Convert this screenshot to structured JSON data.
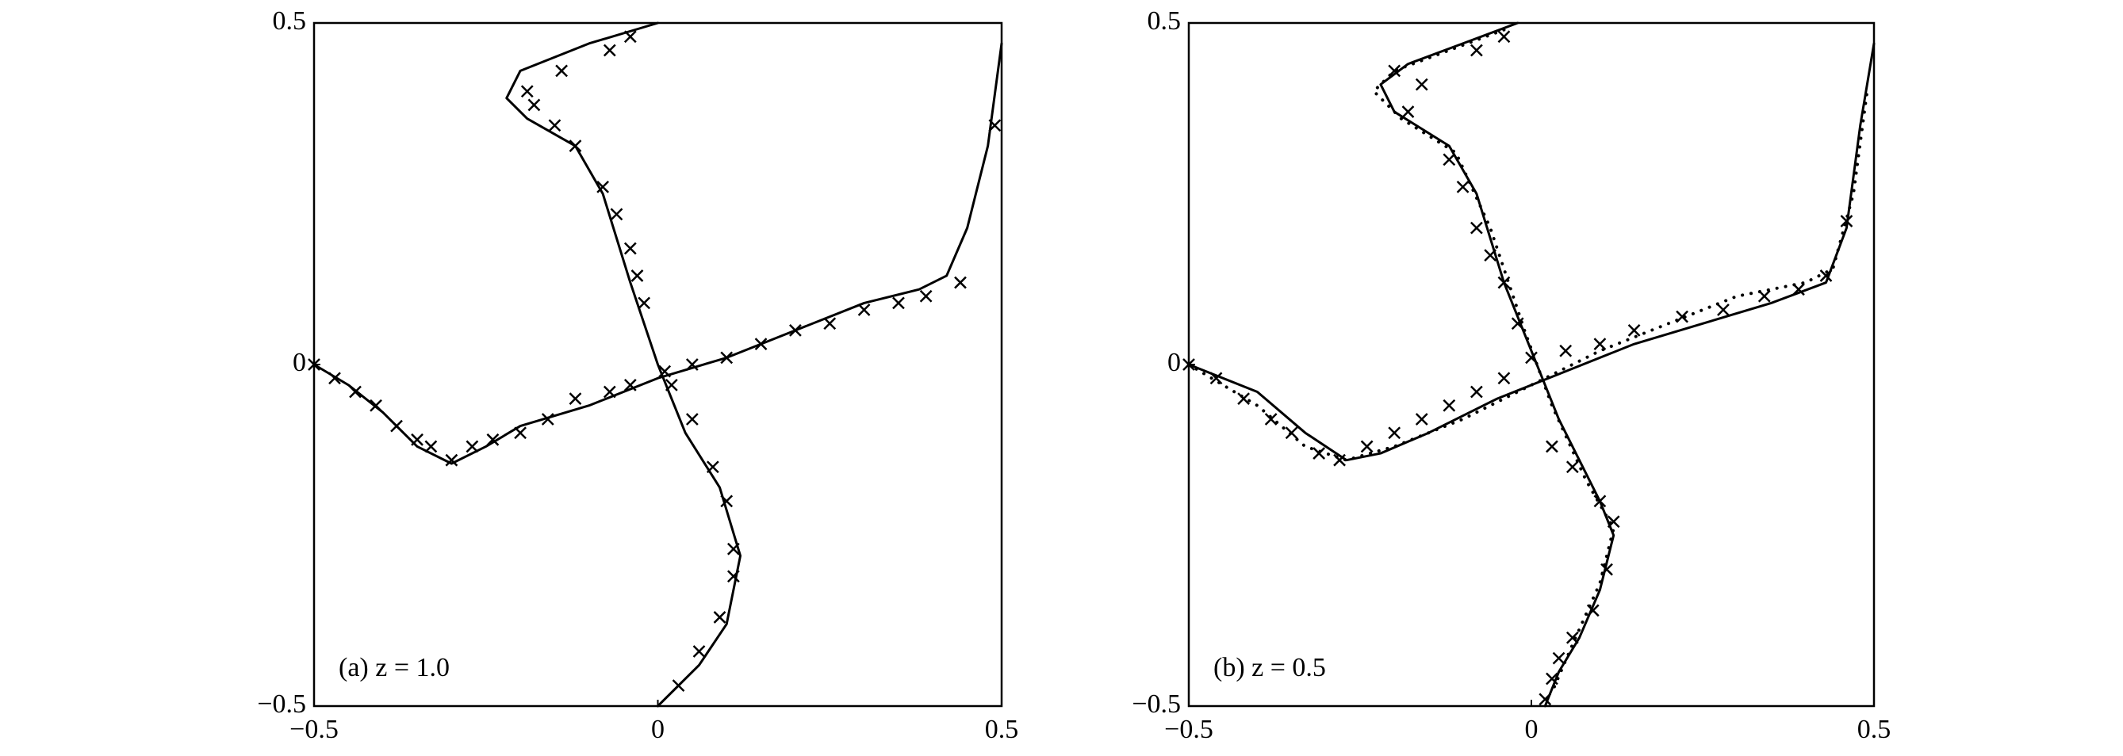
{
  "chart_data": [
    {
      "type": "line",
      "annotation": "(a) z = 1.0",
      "xlim": [
        -0.5,
        0.5
      ],
      "ylim": [
        -0.5,
        0.5
      ],
      "xticks": [
        {
          "value": -0.5,
          "label": "−0.5"
        },
        0,
        0.5
      ],
      "yticks": [
        {
          "value": -0.5,
          "label": "−0.5"
        },
        0,
        0.5
      ],
      "series": [
        {
          "color": "#000000",
          "linestyle": "solid",
          "x": [
            -0.5,
            -0.45,
            -0.4,
            -0.35,
            -0.3,
            -0.25,
            -0.2,
            -0.1,
            0,
            0.1,
            0.2,
            0.3,
            0.38,
            0.42,
            0.45,
            0.48,
            0.5
          ],
          "values": [
            0,
            -0.03,
            -0.07,
            -0.12,
            -0.145,
            -0.12,
            -0.09,
            -0.06,
            -0.02,
            0.01,
            0.05,
            0.09,
            0.11,
            0.13,
            0.2,
            0.32,
            0.47
          ]
        },
        {
          "color": "#000000",
          "linestyle": "solid",
          "x": [
            0,
            -0.1,
            -0.2,
            -0.22,
            -0.19,
            -0.12,
            -0.08,
            -0.04,
            0,
            0.04,
            0.09,
            0.12,
            0.1,
            0.06,
            0
          ],
          "values": [
            0.5,
            0.47,
            0.43,
            0.39,
            0.36,
            0.32,
            0.25,
            0.12,
            0,
            -0.1,
            -0.18,
            -0.28,
            -0.38,
            -0.44,
            -0.5
          ]
        },
        {
          "color": "#000000",
          "marker": "x",
          "x": [
            -0.5,
            -0.47,
            -0.44,
            -0.41,
            -0.38,
            -0.35,
            -0.33,
            -0.3,
            -0.27,
            -0.24,
            -0.2,
            -0.16,
            -0.12,
            -0.07,
            -0.04,
            0.01,
            0.05,
            0.1,
            0.15,
            0.2,
            0.25,
            0.3,
            0.35,
            0.39,
            0.44,
            0.49,
            -0.04,
            -0.07,
            -0.14,
            -0.19,
            -0.18,
            -0.15,
            -0.12,
            -0.08,
            -0.06,
            -0.04,
            -0.03,
            -0.02,
            0.02,
            0.05,
            0.08,
            0.1,
            0.11,
            0.11,
            0.09,
            0.06,
            0.03
          ],
          "values": [
            0,
            -0.02,
            -0.04,
            -0.06,
            -0.09,
            -0.11,
            -0.12,
            -0.14,
            -0.12,
            -0.11,
            -0.1,
            -0.08,
            -0.05,
            -0.04,
            -0.03,
            -0.01,
            0,
            0.01,
            0.03,
            0.05,
            0.06,
            0.08,
            0.09,
            0.1,
            0.12,
            0.35,
            0.48,
            0.46,
            0.43,
            0.4,
            0.38,
            0.35,
            0.32,
            0.26,
            0.22,
            0.17,
            0.13,
            0.09,
            -0.03,
            -0.08,
            -0.15,
            -0.2,
            -0.27,
            -0.31,
            -0.37,
            -0.42,
            -0.47
          ]
        }
      ]
    },
    {
      "type": "line",
      "annotation": "(b) z = 0.5",
      "xlim": [
        -0.5,
        0.5
      ],
      "ylim": [
        -0.5,
        0.5
      ],
      "xticks": [
        {
          "value": -0.5,
          "label": "−0.5"
        },
        0,
        0.5
      ],
      "yticks": [
        {
          "value": -0.5,
          "label": "−0.5"
        },
        0,
        0.5
      ],
      "series": [
        {
          "color": "#000000",
          "linestyle": "solid",
          "x": [
            -0.5,
            -0.4,
            -0.33,
            -0.27,
            -0.22,
            -0.15,
            -0.05,
            0.05,
            0.15,
            0.25,
            0.35,
            0.43,
            0.46,
            0.48,
            0.5
          ],
          "values": [
            0,
            -0.04,
            -0.1,
            -0.14,
            -0.13,
            -0.1,
            -0.05,
            -0.01,
            0.03,
            0.06,
            0.09,
            0.12,
            0.2,
            0.35,
            0.47
          ]
        },
        {
          "color": "#000000",
          "linestyle": "solid",
          "x": [
            -0.02,
            -0.1,
            -0.18,
            -0.22,
            -0.2,
            -0.12,
            -0.08,
            -0.04,
            0,
            0.04,
            0.1,
            0.12,
            0.1,
            0.07,
            0.04,
            0.02
          ],
          "values": [
            0.5,
            0.47,
            0.44,
            0.41,
            0.37,
            0.32,
            0.25,
            0.12,
            0.02,
            -0.08,
            -0.2,
            -0.25,
            -0.33,
            -0.4,
            -0.45,
            -0.5
          ]
        },
        {
          "color": "#000000",
          "linestyle": "dotted",
          "x": [
            -0.5,
            -0.4,
            -0.33,
            -0.27,
            -0.2,
            -0.1,
            0,
            0.1,
            0.2,
            0.3,
            0.4,
            0.44,
            0.47,
            0.49
          ],
          "values": [
            0,
            -0.06,
            -0.12,
            -0.14,
            -0.12,
            -0.08,
            -0.03,
            0.02,
            0.06,
            0.1,
            0.12,
            0.14,
            0.25,
            0.4
          ]
        },
        {
          "color": "#000000",
          "linestyle": "dotted",
          "x": [
            -0.04,
            -0.12,
            -0.2,
            -0.23,
            -0.19,
            -0.11,
            -0.06,
            -0.01,
            0.03,
            0.08,
            0.12,
            0.1,
            0.06,
            0.03
          ],
          "values": [
            0.49,
            0.46,
            0.43,
            0.4,
            0.36,
            0.31,
            0.2,
            0.05,
            -0.06,
            -0.17,
            -0.24,
            -0.32,
            -0.41,
            -0.48
          ]
        },
        {
          "color": "#000000",
          "marker": "x",
          "x": [
            -0.5,
            -0.46,
            -0.42,
            -0.38,
            -0.35,
            -0.31,
            -0.28,
            -0.24,
            -0.2,
            -0.16,
            -0.12,
            -0.08,
            -0.04,
            0.0,
            0.05,
            0.1,
            0.15,
            0.22,
            0.28,
            0.34,
            0.39,
            0.43,
            0.46,
            -0.04,
            -0.08,
            -0.16,
            -0.2,
            -0.18,
            -0.12,
            -0.1,
            -0.08,
            -0.06,
            -0.04,
            -0.02,
            0.03,
            0.06,
            0.1,
            0.12,
            0.11,
            0.09,
            0.06,
            0.04,
            0.03,
            0.02
          ],
          "values": [
            0,
            -0.02,
            -0.05,
            -0.08,
            -0.1,
            -0.13,
            -0.14,
            -0.12,
            -0.1,
            -0.08,
            -0.06,
            -0.04,
            -0.02,
            0.01,
            0.02,
            0.03,
            0.05,
            0.07,
            0.08,
            0.1,
            0.11,
            0.13,
            0.21,
            0.48,
            0.46,
            0.41,
            0.43,
            0.37,
            0.3,
            0.26,
            0.2,
            0.16,
            0.12,
            0.06,
            -0.12,
            -0.15,
            -0.2,
            -0.23,
            -0.3,
            -0.36,
            -0.4,
            -0.43,
            -0.46,
            -0.49
          ]
        }
      ]
    }
  ]
}
